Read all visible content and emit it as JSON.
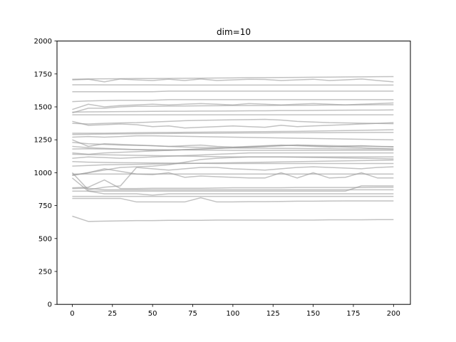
{
  "chart_data": {
    "type": "line",
    "title": "dim=10",
    "xlabel": "",
    "ylabel": "",
    "xlim": [
      -9.5,
      210.5
    ],
    "ylim": [
      0,
      2000
    ],
    "grid": false,
    "x_ticks": [
      0,
      25,
      50,
      75,
      100,
      125,
      150,
      175,
      200
    ],
    "x_tick_labels": [
      "0",
      "25",
      "50",
      "75",
      "100",
      "125",
      "150",
      "175",
      "200"
    ],
    "y_ticks": [
      0,
      250,
      500,
      750,
      1000,
      1250,
      1500,
      1750,
      2000
    ],
    "y_tick_labels": [
      "0",
      "250",
      "500",
      "750",
      "1000",
      "1250",
      "1500",
      "1750",
      "2000"
    ],
    "line_color": "#999999",
    "x": [
      0,
      10,
      20,
      30,
      40,
      50,
      60,
      70,
      80,
      90,
      100,
      110,
      120,
      130,
      140,
      150,
      160,
      170,
      180,
      190,
      200
    ],
    "series": [
      {
        "values": [
          1705,
          1710,
          1690,
          1712,
          1705,
          1700,
          1710,
          1700,
          1712,
          1700,
          1705,
          1710,
          1708,
          1700,
          1705,
          1710,
          1700,
          1705,
          1712,
          1700,
          1690
        ]
      },
      {
        "values": [
          1710,
          1712,
          1713,
          1714,
          1715,
          1715,
          1716,
          1717,
          1718,
          1719,
          1720,
          1722,
          1722,
          1723,
          1724,
          1725,
          1726,
          1727,
          1728,
          1729,
          1730
        ]
      },
      {
        "values": [
          1668,
          1668,
          1667,
          1667,
          1667,
          1667,
          1666,
          1666,
          1666,
          1666,
          1666,
          1666,
          1666,
          1666,
          1666,
          1666,
          1666,
          1666,
          1666,
          1666,
          1666
        ]
      },
      {
        "values": [
          1615,
          1615,
          1615,
          1615,
          1615,
          1615,
          1620,
          1620,
          1620,
          1620,
          1620,
          1620,
          1620,
          1620,
          1620,
          1620,
          1620,
          1620,
          1620,
          1620,
          1620
        ]
      },
      {
        "values": [
          1540,
          1545,
          1548,
          1550,
          1550,
          1550,
          1555,
          1555,
          1555,
          1555,
          1555,
          1555,
          1555,
          1555,
          1555,
          1555,
          1555,
          1555,
          1555,
          1555,
          1555
        ]
      },
      {
        "values": [
          1480,
          1520,
          1500,
          1510,
          1515,
          1520,
          1515,
          1520,
          1525,
          1520,
          1515,
          1525,
          1520,
          1515,
          1520,
          1525,
          1520,
          1515,
          1520,
          1525,
          1530
        ]
      },
      {
        "values": [
          1455,
          1490,
          1490,
          1500,
          1505,
          1505,
          1506,
          1507,
          1508,
          1509,
          1510,
          1510,
          1510,
          1512,
          1512,
          1513,
          1514,
          1515,
          1515,
          1516,
          1516
        ]
      },
      {
        "values": [
          1460,
          1462,
          1463,
          1464,
          1465,
          1466,
          1467,
          1467,
          1468,
          1468,
          1469,
          1470,
          1470,
          1472,
          1472,
          1473,
          1474,
          1475,
          1476,
          1476,
          1477
        ]
      },
      {
        "values": [
          1440,
          1440,
          1440,
          1440,
          1440,
          1440,
          1440,
          1440,
          1440,
          1440,
          1440,
          1440,
          1440,
          1440,
          1440,
          1440,
          1440,
          1440,
          1440,
          1440,
          1440
        ]
      },
      {
        "values": [
          1390,
          1360,
          1365,
          1370,
          1365,
          1350,
          1355,
          1340,
          1345,
          1350,
          1355,
          1350,
          1345,
          1360,
          1350,
          1355,
          1360,
          1365,
          1370,
          1375,
          1380
        ]
      },
      {
        "values": [
          1375,
          1370,
          1375,
          1378,
          1380,
          1385,
          1390,
          1395,
          1398,
          1400,
          1402,
          1403,
          1405,
          1400,
          1390,
          1385,
          1380,
          1378,
          1376,
          1374,
          1372
        ]
      },
      {
        "values": [
          1300,
          1300,
          1300,
          1302,
          1304,
          1305,
          1306,
          1307,
          1308,
          1309,
          1310,
          1311,
          1312,
          1313,
          1314,
          1316,
          1318,
          1320,
          1322,
          1324,
          1326
        ]
      },
      {
        "values": [
          1290,
          1292,
          1294,
          1295,
          1296,
          1297,
          1298,
          1299,
          1300,
          1300,
          1301,
          1302,
          1302,
          1303,
          1303,
          1304,
          1304,
          1305,
          1305,
          1306,
          1306
        ]
      },
      {
        "values": [
          1270,
          1275,
          1270,
          1275,
          1280,
          1280,
          1278,
          1276,
          1274,
          1272,
          1270,
          1268,
          1266,
          1264,
          1262,
          1260,
          1258,
          1256,
          1254,
          1252,
          1250
        ]
      },
      {
        "values": [
          1250,
          1200,
          1220,
          1215,
          1210,
          1205,
          1200,
          1205,
          1210,
          1200,
          1195,
          1200,
          1205,
          1210,
          1205,
          1200,
          1195,
          1200,
          1205,
          1200,
          1195
        ]
      },
      {
        "values": [
          1230,
          1220,
          1215,
          1210,
          1208,
          1205,
          1200,
          1195,
          1192,
          1190,
          1188,
          1187,
          1186,
          1185,
          1184,
          1183,
          1182,
          1181,
          1180,
          1180,
          1180
        ]
      },
      {
        "values": [
          1200,
          1190,
          1185,
          1180,
          1175,
          1170,
          1170,
          1175,
          1180,
          1185,
          1190,
          1195,
          1200,
          1205,
          1210,
          1205,
          1200,
          1195,
          1190,
          1185,
          1180
        ]
      },
      {
        "values": [
          1180,
          1182,
          1180,
          1178,
          1176,
          1175,
          1174,
          1173,
          1172,
          1171,
          1170,
          1170,
          1170,
          1170,
          1170,
          1170,
          1170,
          1170,
          1170,
          1170,
          1170
        ]
      },
      {
        "values": [
          1150,
          1140,
          1150,
          1155,
          1160,
          1165,
          1170,
          1175,
          1180,
          1185,
          1190,
          1195,
          1200,
          1205,
          1210,
          1208,
          1206,
          1204,
          1202,
          1200,
          1198
        ]
      },
      {
        "values": [
          1140,
          1138,
          1136,
          1134,
          1132,
          1130,
          1128,
          1126,
          1124,
          1122,
          1120,
          1120,
          1120,
          1120,
          1120,
          1120,
          1120,
          1120,
          1120,
          1120,
          1120
        ]
      },
      {
        "values": [
          1110,
          1120,
          1115,
          1110,
          1115,
          1120,
          1125,
          1130,
          1135,
          1140,
          1145,
          1150,
          1150,
          1150,
          1150,
          1150,
          1150,
          1150,
          1150,
          1150,
          1150
        ]
      },
      {
        "values": [
          1085,
          1080,
          1078,
          1076,
          1075,
          1074,
          1073,
          1072,
          1071,
          1070,
          1070,
          1070,
          1070,
          1070,
          1070,
          1070,
          1070,
          1070,
          1070,
          1070,
          1070
        ]
      },
      {
        "values": [
          1050,
          1055,
          1060,
          1062,
          1064,
          1066,
          1068,
          1070,
          1072,
          1074,
          1076,
          1078,
          1080,
          1082,
          1084,
          1086,
          1088,
          1090,
          1092,
          1094,
          1096
        ]
      },
      {
        "values": [
          980,
          1000,
          1020,
          1040,
          1045,
          1050,
          1060,
          1080,
          1100,
          1110,
          1115,
          1120,
          1120,
          1120,
          1118,
          1116,
          1114,
          1112,
          1110,
          1108,
          1105
        ]
      },
      {
        "values": [
          1000,
          870,
          890,
          900,
          1040,
          1030,
          1020,
          1030,
          1040,
          1040,
          1030,
          1025,
          1020,
          1030,
          1040,
          1045,
          1040,
          1035,
          1030,
          1040,
          1045
        ]
      },
      {
        "values": [
          980,
          1000,
          1030,
          1010,
          990,
          985,
          1000,
          965,
          975,
          970,
          965,
          960,
          960,
          1000,
          960,
          1000,
          960,
          965,
          1000,
          960,
          960
        ]
      },
      {
        "values": [
          990,
          990,
          990,
          990,
          990,
          990,
          990,
          990,
          990,
          990,
          990,
          990,
          990,
          990,
          990,
          990,
          990,
          990,
          990,
          990,
          990
        ]
      },
      {
        "values": [
          960,
          860,
          860,
          860,
          860,
          860,
          860,
          860,
          860,
          860,
          860,
          860,
          860,
          860,
          860,
          860,
          860,
          860,
          900,
          900,
          900
        ]
      },
      {
        "values": [
          885,
          890,
          945,
          880,
          880,
          882,
          882,
          882,
          882,
          884,
          886,
          886,
          886,
          886,
          888,
          888,
          888,
          888,
          888,
          890,
          890
        ]
      },
      {
        "values": [
          880,
          882,
          870,
          870,
          870,
          870,
          870,
          870,
          870,
          870,
          870,
          870,
          870,
          870,
          870,
          870,
          870,
          870,
          870,
          870,
          870
        ]
      },
      {
        "values": [
          860,
          860,
          840,
          840,
          840,
          830,
          840,
          840,
          840,
          840,
          840,
          840,
          840,
          840,
          840,
          840,
          840,
          840,
          840,
          840,
          840
        ]
      },
      {
        "values": [
          820,
          820,
          820,
          820,
          820,
          820,
          820,
          820,
          820,
          820,
          820,
          820,
          820,
          820,
          820,
          820,
          820,
          820,
          820,
          820,
          820
        ]
      },
      {
        "values": [
          805,
          805,
          805,
          805,
          778,
          778,
          778,
          778,
          810,
          778,
          778,
          780,
          780,
          782,
          784,
          784,
          785,
          786,
          786,
          786,
          786
        ]
      },
      {
        "values": [
          670,
          630,
          632,
          634,
          636,
          636,
          638,
          638,
          638,
          640,
          640,
          640,
          640,
          640,
          640,
          640,
          642,
          642,
          642,
          644,
          644
        ]
      }
    ]
  }
}
